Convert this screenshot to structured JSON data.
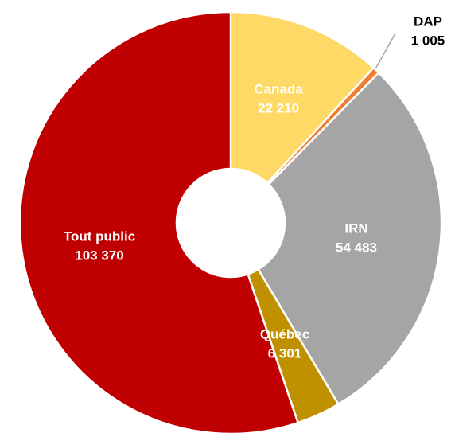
{
  "chart_data": {
    "type": "donut",
    "categories": [
      "Canada",
      "DAP",
      "IRN",
      "Québec",
      "Tout public"
    ],
    "values": [
      22210,
      1005,
      54483,
      6301,
      103370
    ],
    "value_labels": [
      "22 210",
      "1 005",
      "54 483",
      "6 301",
      "103 370"
    ],
    "colors": [
      "#ffd966",
      "#ed7d31",
      "#a5a5a5",
      "#bf9000",
      "#c00000"
    ]
  }
}
